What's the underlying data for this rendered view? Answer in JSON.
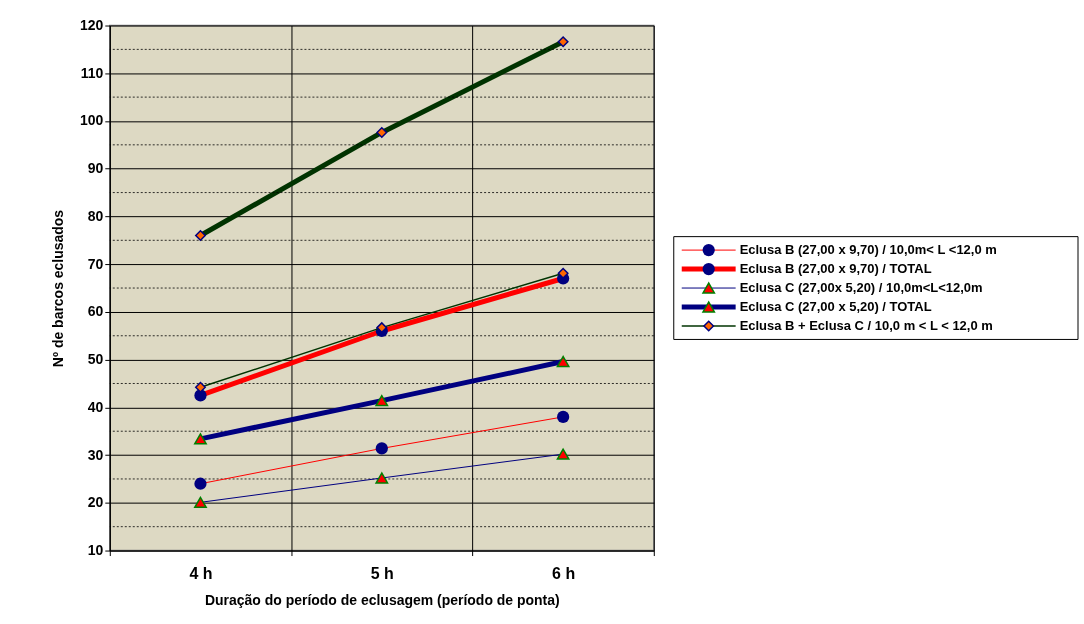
{
  "chart_data": {
    "type": "line",
    "xlabel": "Duração do período de eclusagem (período de ponta)",
    "ylabel": "Nº de barcos eclusados",
    "categories": [
      "4 h",
      "5 h",
      "6 h"
    ],
    "ylim": [
      10,
      120
    ],
    "yticks": [
      10,
      {
        "value": 15,
        "label": null
      },
      20,
      {
        "value": 25,
        "label": null
      },
      30,
      {
        "value": 35,
        "label": null
      },
      40,
      {
        "value": 45,
        "label": null
      },
      50,
      {
        "value": 55,
        "label": null
      },
      60,
      {
        "value": 65,
        "label": null
      },
      70,
      {
        "value": 75,
        "label": null
      },
      80,
      {
        "value": 85,
        "label": null
      },
      90,
      {
        "value": 95,
        "label": null
      },
      100,
      {
        "value": 105,
        "label": null
      },
      110,
      {
        "value": 115,
        "label": null
      },
      120
    ],
    "grid": true,
    "legend": "right",
    "line_style": "solid",
    "series": [
      {
        "color": "#003300",
        "marker": "diamond",
        "colors": [
          "#ff6600",
          "#ff6600",
          "#ff6600"
        ],
        "values": [
          76,
          97.6,
          116.6
        ]
      },
      {
        "name": "Eclusa B (27,00 x 9,70) / 10,0m< L <12,0 m",
        "color": "#ff0000",
        "marker": "circle",
        "colors": [
          "#000080",
          "#000080",
          "#000080"
        ],
        "values": [
          24.0,
          31.4,
          38.0
        ]
      },
      {
        "name": "Eclusa B (27,00 x 9,70) / TOTAL",
        "color": "#ff0000",
        "marker": "circle",
        "colors": [
          "#000080",
          "#000080",
          "#000080"
        ],
        "values": [
          42.5,
          56.0,
          67.0
        ]
      },
      {
        "name": "Eclusa C (27,00x 5,20) / 10,0m<L<12,0m",
        "color": "#000080",
        "marker": "triangle",
        "colors": [
          "#ff0000",
          "#ff0000",
          "#ff0000"
        ],
        "values": [
          20.1,
          25.2,
          30.2
        ]
      },
      {
        "name": "Eclusa C (27,00 x 5,20) / TOTAL",
        "color": "#000080",
        "marker": "triangle",
        "colors": [
          "#ff0000",
          "#ff0000",
          "#ff0000"
        ],
        "values": [
          33.4,
          41.4,
          49.6
        ]
      },
      {
        "name": "Eclusa B + Eclusa C / 10,0 m < L < 12,0 m",
        "color": "#003300",
        "marker": "diamond",
        "colors": [
          "#ff6600",
          "#ff6600",
          "#ff6600"
        ],
        "values": [
          44.2,
          56.7,
          68.1
        ]
      }
    ]
  }
}
